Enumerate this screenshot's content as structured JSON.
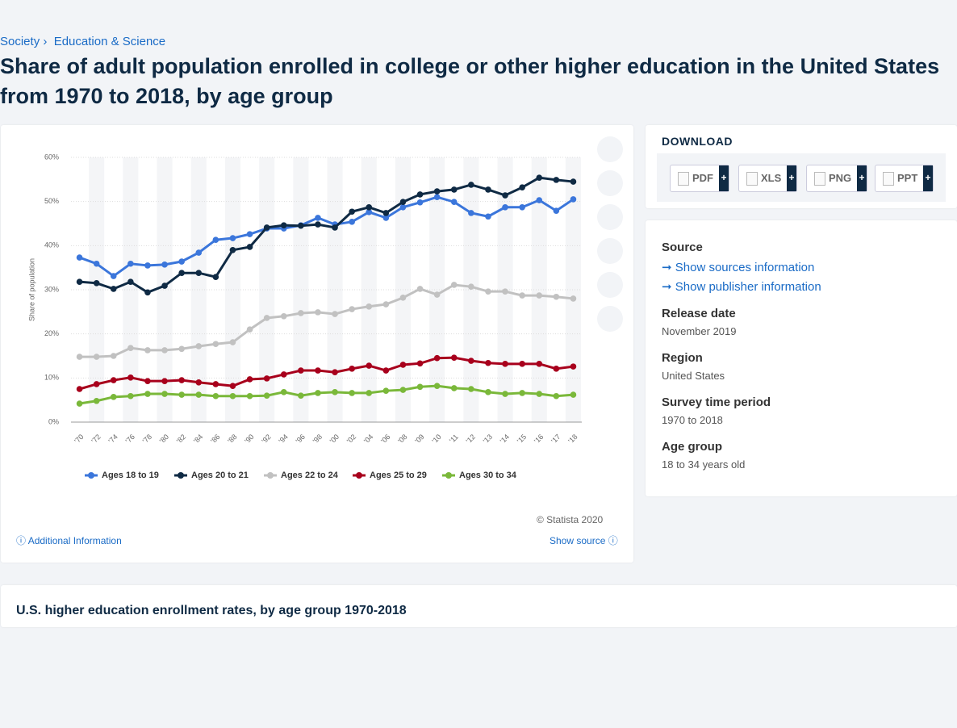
{
  "breadcrumb": [
    "Society",
    "Education & Science"
  ],
  "title": "Share of adult population enrolled in college or other higher education in the United States from 1970 to 2018, by age group",
  "chart_data": {
    "type": "line",
    "y_label": "Share of population",
    "categories": [
      "'70",
      "'72",
      "'74",
      "'76",
      "'78",
      "'80",
      "'82",
      "'84",
      "'86",
      "'88",
      "'90",
      "'92",
      "'94",
      "'96",
      "'98",
      "'00",
      "'02",
      "'04",
      "'06",
      "'08",
      "'09",
      "'10",
      "'11",
      "'12",
      "'13",
      "'14",
      "'15",
      "'16",
      "'17",
      "'18"
    ],
    "ylim": [
      0,
      60
    ],
    "yticks": [
      {
        "value": 0,
        "label": "0%"
      },
      {
        "value": 10,
        "label": "10%"
      },
      {
        "value": 20,
        "label": "20%"
      },
      {
        "value": 30,
        "label": "30%"
      },
      {
        "value": 40,
        "label": "40%"
      },
      {
        "value": 50,
        "label": "50%"
      },
      {
        "value": 60,
        "label": "60%"
      }
    ],
    "grid": true,
    "legend": "bottom",
    "series": [
      {
        "name": "Ages 18 to 19",
        "color": "#3b76db",
        "values": [
          37.3,
          35.9,
          33.1,
          35.9,
          35.5,
          35.7,
          36.4,
          38.4,
          41.3,
          41.7,
          42.6,
          43.9,
          43.9,
          44.6,
          46.3,
          44.8,
          45.4,
          47.6,
          46.3,
          48.7,
          49.8,
          51.0,
          49.9,
          47.4,
          46.6,
          48.7,
          48.7,
          50.3,
          47.9,
          50.5
        ]
      },
      {
        "name": "Ages 20 to 21",
        "color": "#0f2a44",
        "values": [
          31.8,
          31.5,
          30.2,
          31.8,
          29.4,
          30.9,
          33.8,
          33.8,
          32.9,
          39.0,
          39.7,
          44.1,
          44.6,
          44.5,
          44.8,
          44.1,
          47.7,
          48.7,
          47.4,
          49.9,
          51.6,
          52.3,
          52.7,
          53.8,
          52.7,
          51.4,
          53.2,
          55.4,
          54.9,
          54.5
        ]
      },
      {
        "name": "Ages 22 to 24",
        "color": "#c1c1c1",
        "values": [
          14.8,
          14.8,
          15.0,
          16.8,
          16.3,
          16.3,
          16.6,
          17.2,
          17.7,
          18.1,
          21.0,
          23.6,
          24.0,
          24.7,
          24.9,
          24.5,
          25.6,
          26.2,
          26.7,
          28.2,
          30.2,
          28.9,
          31.1,
          30.7,
          29.6,
          29.6,
          28.7,
          28.7,
          28.4,
          28.0
        ]
      },
      {
        "name": "Ages 25 to 29",
        "color": "#a8001c",
        "values": [
          7.5,
          8.6,
          9.5,
          10.1,
          9.3,
          9.3,
          9.5,
          9.0,
          8.6,
          8.2,
          9.7,
          9.9,
          10.8,
          11.7,
          11.7,
          11.3,
          12.1,
          12.8,
          11.7,
          13.0,
          13.3,
          14.5,
          14.6,
          13.9,
          13.4,
          13.2,
          13.2,
          13.2,
          12.1,
          12.6
        ]
      },
      {
        "name": "Ages 30 to 34",
        "color": "#7ab83a",
        "values": [
          4.2,
          4.8,
          5.7,
          5.9,
          6.4,
          6.4,
          6.2,
          6.2,
          5.9,
          5.9,
          5.9,
          6.0,
          6.8,
          6.0,
          6.6,
          6.8,
          6.6,
          6.6,
          7.1,
          7.3,
          8.0,
          8.2,
          7.7,
          7.5,
          6.8,
          6.4,
          6.6,
          6.4,
          5.9,
          6.2
        ]
      }
    ]
  },
  "chart_footer": {
    "copyright": "© Statista 2020",
    "additional": "Additional Information",
    "show_source": "Show source"
  },
  "download": {
    "heading": "DOWNLOAD",
    "buttons": [
      {
        "label": "PDF",
        "badge": "+"
      },
      {
        "label": "XLS",
        "badge": "+"
      },
      {
        "label": "PNG",
        "badge": "+"
      },
      {
        "label": "PPT",
        "badge": "+"
      }
    ]
  },
  "details": {
    "source_heading": "Source",
    "source_links": [
      "Show sources information",
      "Show publisher information"
    ],
    "items": [
      {
        "label": "Release date",
        "value": "November 2019"
      },
      {
        "label": "Region",
        "value": "United States"
      },
      {
        "label": "Survey time period",
        "value": "1970 to 2018"
      },
      {
        "label": "Age group",
        "value": "18 to 34 years old"
      }
    ]
  },
  "related_heading": "U.S. higher education enrollment rates, by age group 1970-2018"
}
